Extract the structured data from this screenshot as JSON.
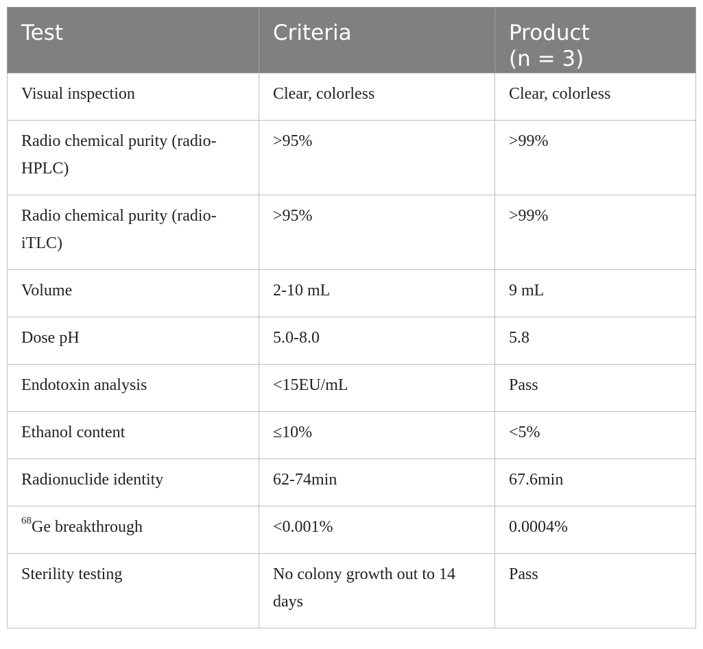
{
  "table": {
    "headers": {
      "test": "Test",
      "criteria": "Criteria",
      "product_line1": "Product",
      "product_line2": "(n = 3)"
    },
    "rows": [
      {
        "test": "Visual inspection",
        "criteria": "Clear, colorless",
        "product": "Clear, colorless"
      },
      {
        "test": "Radio chemical purity (radio-HPLC)",
        "criteria": ">95%",
        "product": ">99%"
      },
      {
        "test": "Radio chemical purity (radio-iTLC)",
        "criteria": ">95%",
        "product": ">99%"
      },
      {
        "test": "Volume",
        "criteria": "2-10 mL",
        "product": "9 mL"
      },
      {
        "test": "Dose pH",
        "criteria": "5.0-8.0",
        "product": "5.8"
      },
      {
        "test": "Endotoxin analysis",
        "criteria": "<15EU/mL",
        "product": "Pass"
      },
      {
        "test": "Ethanol content",
        "criteria": "≤10%",
        "product": "<5%"
      },
      {
        "test": "Radionuclide identity",
        "criteria": "62-74min",
        "product": "67.6min"
      },
      {
        "test_sup": "68",
        "test": "Ge breakthrough",
        "criteria": "<0.001%",
        "product": "0.0004%"
      },
      {
        "test": "Sterility testing",
        "criteria": "No colony growth out to 14 days",
        "product": "Pass"
      }
    ]
  }
}
